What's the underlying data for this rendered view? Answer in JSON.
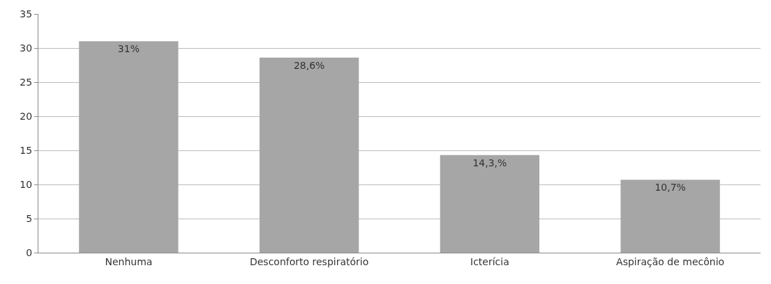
{
  "chart_data": {
    "type": "bar",
    "categories": [
      "Nenhuma",
      "Desconforto respiratório",
      "Icterícia",
      "Aspiração de mecônio"
    ],
    "values": [
      31,
      28.6,
      14.3,
      10.7
    ],
    "value_labels": [
      "31%",
      "28,6%",
      "14,3,%",
      "10,7%"
    ],
    "color": "#a6a6a6",
    "ylim": [
      0,
      35
    ],
    "yticks": [
      0,
      5,
      10,
      15,
      20,
      25,
      30,
      35
    ],
    "grid": "y",
    "legend": false
  }
}
